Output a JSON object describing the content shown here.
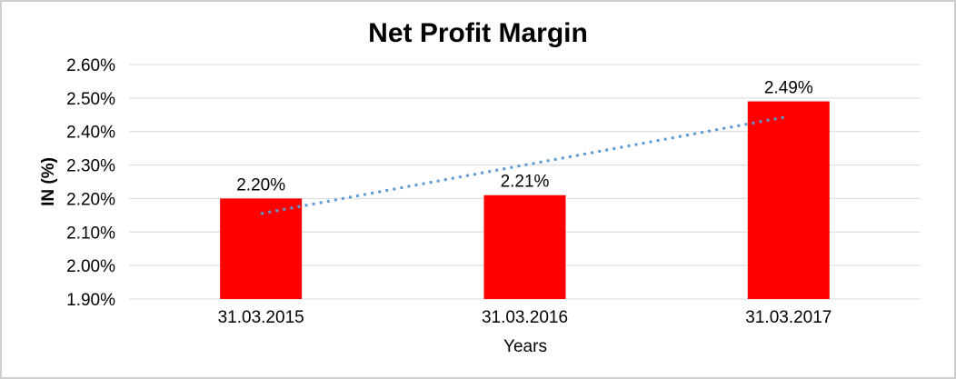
{
  "chart_data": {
    "type": "bar",
    "title": "Net Profit Margin",
    "xlabel": "Years",
    "ylabel": "IN (%)",
    "categories": [
      "31.03.2015",
      "31.03.2016",
      "31.03.2017"
    ],
    "values": [
      2.2,
      2.21,
      2.49
    ],
    "data_labels": [
      "2.20%",
      "2.21%",
      "2.49%"
    ],
    "ylim": [
      1.9,
      2.6
    ],
    "yticks": [
      {
        "value": 1.9,
        "label": "1.90%"
      },
      {
        "value": 2.0,
        "label": "2.00%"
      },
      {
        "value": 2.1,
        "label": "2.10%"
      },
      {
        "value": 2.2,
        "label": "2.20%"
      },
      {
        "value": 2.3,
        "label": "2.30%"
      },
      {
        "value": 2.4,
        "label": "2.40%"
      },
      {
        "value": 2.5,
        "label": "2.50%"
      },
      {
        "value": 2.6,
        "label": "2.60%"
      }
    ],
    "grid": true,
    "legend_position": "none",
    "trendline": {
      "type": "linear",
      "style": "dotted"
    },
    "colors": {
      "bar": "#FF0000",
      "trendline": "#5B9BD5",
      "gridline": "#D9D9D9",
      "text": "#000000",
      "frame_border": "#D0CECE",
      "background": "#FFFFFF"
    }
  }
}
